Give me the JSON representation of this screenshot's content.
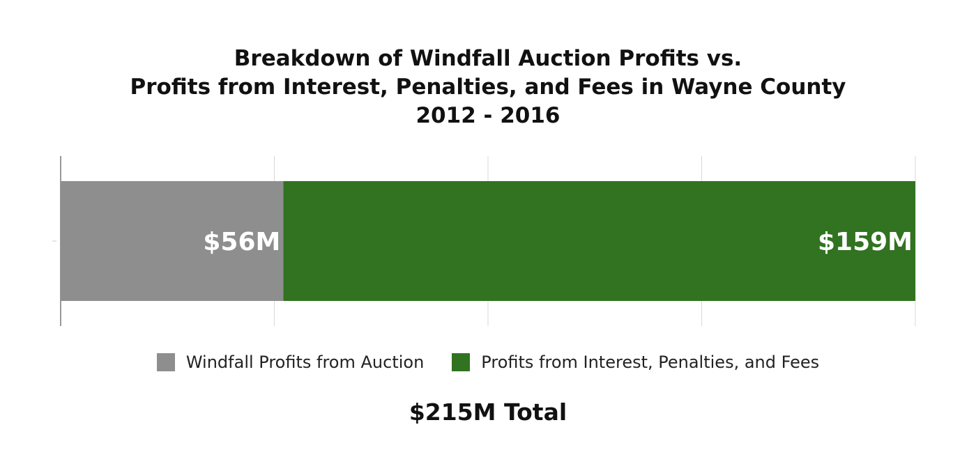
{
  "chart_data": {
    "type": "bar",
    "orientation": "horizontal",
    "stacked": true,
    "title_lines": [
      "Breakdown of Windfall Auction Profits vs.",
      "Profits from Interest, Penalties, and Fees in Wayne County",
      "2012 - 2016"
    ],
    "categories": [
      ""
    ],
    "series": [
      {
        "name": "Windfall Profits from Auction",
        "values": [
          56
        ],
        "label": "$56M",
        "color": "#8e8e8e"
      },
      {
        "name": "Profits from Interest, Penalties, and Fees",
        "values": [
          159
        ],
        "label": "$159M",
        "color": "#317320"
      }
    ],
    "xlim": [
      0,
      215
    ],
    "grid": true,
    "gridlines": 4,
    "legend_position": "bottom",
    "total_label": "$215M Total"
  }
}
